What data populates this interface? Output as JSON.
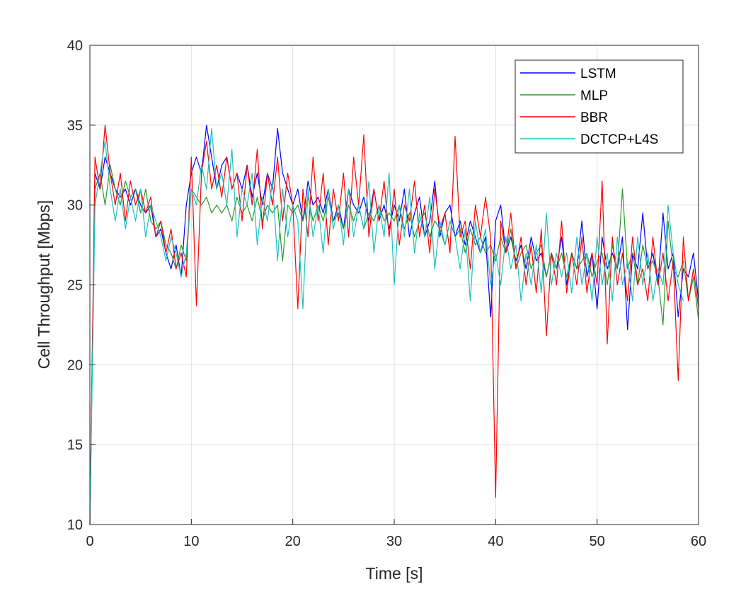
{
  "chart_data": {
    "type": "line",
    "title": "",
    "xlabel": "Time [s]",
    "ylabel": "Cell Throughput [Mbps]",
    "xlim": [
      0,
      60
    ],
    "ylim": [
      10,
      40
    ],
    "xticks": [
      0,
      10,
      20,
      30,
      40,
      50,
      60
    ],
    "yticks": [
      10,
      15,
      20,
      25,
      30,
      35,
      40
    ],
    "grid": true,
    "legend_position": "top-right",
    "x_step": 0.5,
    "series": [
      {
        "name": "LSTM",
        "color": "#0000ff",
        "values": [
          10,
          32,
          31,
          33,
          32,
          31,
          30.5,
          31,
          30,
          31,
          30,
          29.5,
          30,
          28,
          28.5,
          27,
          26,
          27.5,
          25.5,
          30,
          32,
          33,
          32,
          35,
          33,
          31,
          32.5,
          33,
          31,
          32,
          31,
          32.5,
          30.5,
          32,
          30,
          32,
          31,
          34.8,
          32,
          31,
          30,
          31,
          29,
          31.5,
          30,
          30.5,
          29.5,
          31,
          29,
          30,
          28.5,
          31,
          30,
          29.5,
          30.5,
          29,
          31,
          29,
          30,
          28.5,
          30,
          29,
          31,
          28,
          29.5,
          30.5,
          28,
          29,
          31.5,
          28,
          29.5,
          30,
          28,
          29,
          27.5,
          29,
          28,
          27,
          28,
          23,
          29,
          30,
          27,
          28,
          26.5,
          27.5,
          26,
          28,
          26.5,
          27,
          25.5,
          27,
          26,
          28,
          25,
          27,
          26,
          29,
          25.5,
          27,
          23.5,
          28,
          26,
          27,
          26,
          28,
          22.2,
          27,
          26,
          29.5,
          26,
          27,
          25,
          29.5,
          26,
          27,
          23,
          26,
          25.5,
          27,
          24
        ]
      },
      {
        "name": "MLP",
        "color": "#2a9a2a",
        "values": [
          10,
          31,
          32,
          30,
          32.5,
          31,
          30,
          31.5,
          30.5,
          31,
          29.5,
          31,
          29,
          28.5,
          29,
          27.5,
          27,
          26,
          27.5,
          26.5,
          31,
          30.5,
          30,
          30.5,
          29.5,
          30,
          29.5,
          30,
          29,
          30.5,
          29.5,
          30,
          29,
          30.5,
          29,
          30,
          29.5,
          30,
          26.5,
          30,
          29.5,
          30,
          29,
          30.5,
          29,
          30,
          29,
          30.5,
          29,
          29.5,
          28.5,
          30,
          29,
          30,
          28.5,
          29.5,
          29,
          30,
          29,
          29.5,
          29,
          30,
          28.5,
          29.5,
          28,
          29,
          29.5,
          28,
          29,
          28.5,
          27.5,
          29,
          28,
          28.5,
          27,
          28.5,
          27.5,
          28,
          27,
          27.5,
          26.5,
          28,
          27,
          28.5,
          26,
          27,
          27.5,
          26,
          27,
          27.5,
          25.5,
          27,
          26,
          27,
          25.5,
          27,
          26,
          26.5,
          27,
          25.5,
          26.5,
          27,
          25,
          27.5,
          26,
          31,
          26,
          27,
          25,
          27.5,
          26,
          26.5,
          25.5,
          22.5,
          29,
          26,
          25.5,
          26.5,
          24,
          25.5,
          22.8
        ]
      },
      {
        "name": "BBR",
        "color": "#ff0000",
        "values": [
          10,
          33,
          31,
          35,
          32,
          30,
          32,
          29,
          31.5,
          30,
          31,
          29.5,
          30.5,
          28,
          29,
          27,
          28.5,
          26,
          27,
          25.5,
          33,
          23.7,
          32,
          34,
          31,
          32.5,
          30.5,
          33,
          31,
          32,
          29,
          32.5,
          30,
          33.5,
          28.5,
          32,
          30,
          33,
          29,
          32,
          30,
          23.5,
          31,
          28,
          33,
          29,
          32,
          27.5,
          31,
          29,
          32,
          28,
          33,
          30,
          34.4,
          28,
          31,
          29,
          31.5,
          28,
          31,
          27.5,
          30,
          29,
          31.5,
          28,
          30,
          27,
          31,
          28.5,
          29.5,
          27,
          34.3,
          28,
          29,
          26,
          30,
          28,
          30.5,
          28,
          11.7,
          29,
          27,
          29.5,
          26,
          28,
          25,
          27.5,
          24.5,
          28.5,
          21.8,
          27,
          25,
          29,
          24.5,
          27,
          25,
          28,
          24.5,
          27,
          25,
          31.5,
          21.3,
          28,
          25,
          27,
          24,
          28,
          25,
          26,
          24,
          28,
          25,
          27,
          24,
          26.5,
          19,
          28,
          24,
          26,
          23.5
        ]
      },
      {
        "name": "DCTCP+L4S",
        "color": "#20c0c0",
        "values": [
          10,
          30,
          32,
          34,
          31,
          29,
          31,
          28.5,
          30.5,
          29,
          31,
          28,
          30,
          29,
          28,
          26.5,
          28,
          27,
          25.5,
          27,
          31,
          30,
          32.5,
          31,
          34.8,
          31,
          32,
          30,
          33.5,
          28,
          31,
          30,
          32,
          27.5,
          30.5,
          29,
          31.5,
          26.5,
          31,
          28,
          30,
          29,
          23.5,
          31,
          28,
          30,
          27,
          31,
          28.5,
          30,
          27.5,
          31,
          28,
          30,
          28.5,
          31.5,
          27,
          30,
          28,
          32,
          25,
          30,
          28,
          31,
          27,
          29.5,
          28,
          30.5,
          26,
          29,
          27.5,
          29,
          28,
          26,
          28.5,
          24,
          29,
          27,
          28.5,
          25,
          27,
          25,
          28,
          26,
          27.5,
          24,
          27,
          25,
          27.5,
          24.5,
          29.5,
          25,
          27,
          25.5,
          27,
          24.5,
          28,
          25,
          27,
          24,
          28,
          25,
          27,
          24,
          28,
          25,
          26.5,
          24,
          28,
          25,
          27,
          24,
          26,
          25,
          30,
          27,
          25,
          24
        ]
      }
    ]
  }
}
